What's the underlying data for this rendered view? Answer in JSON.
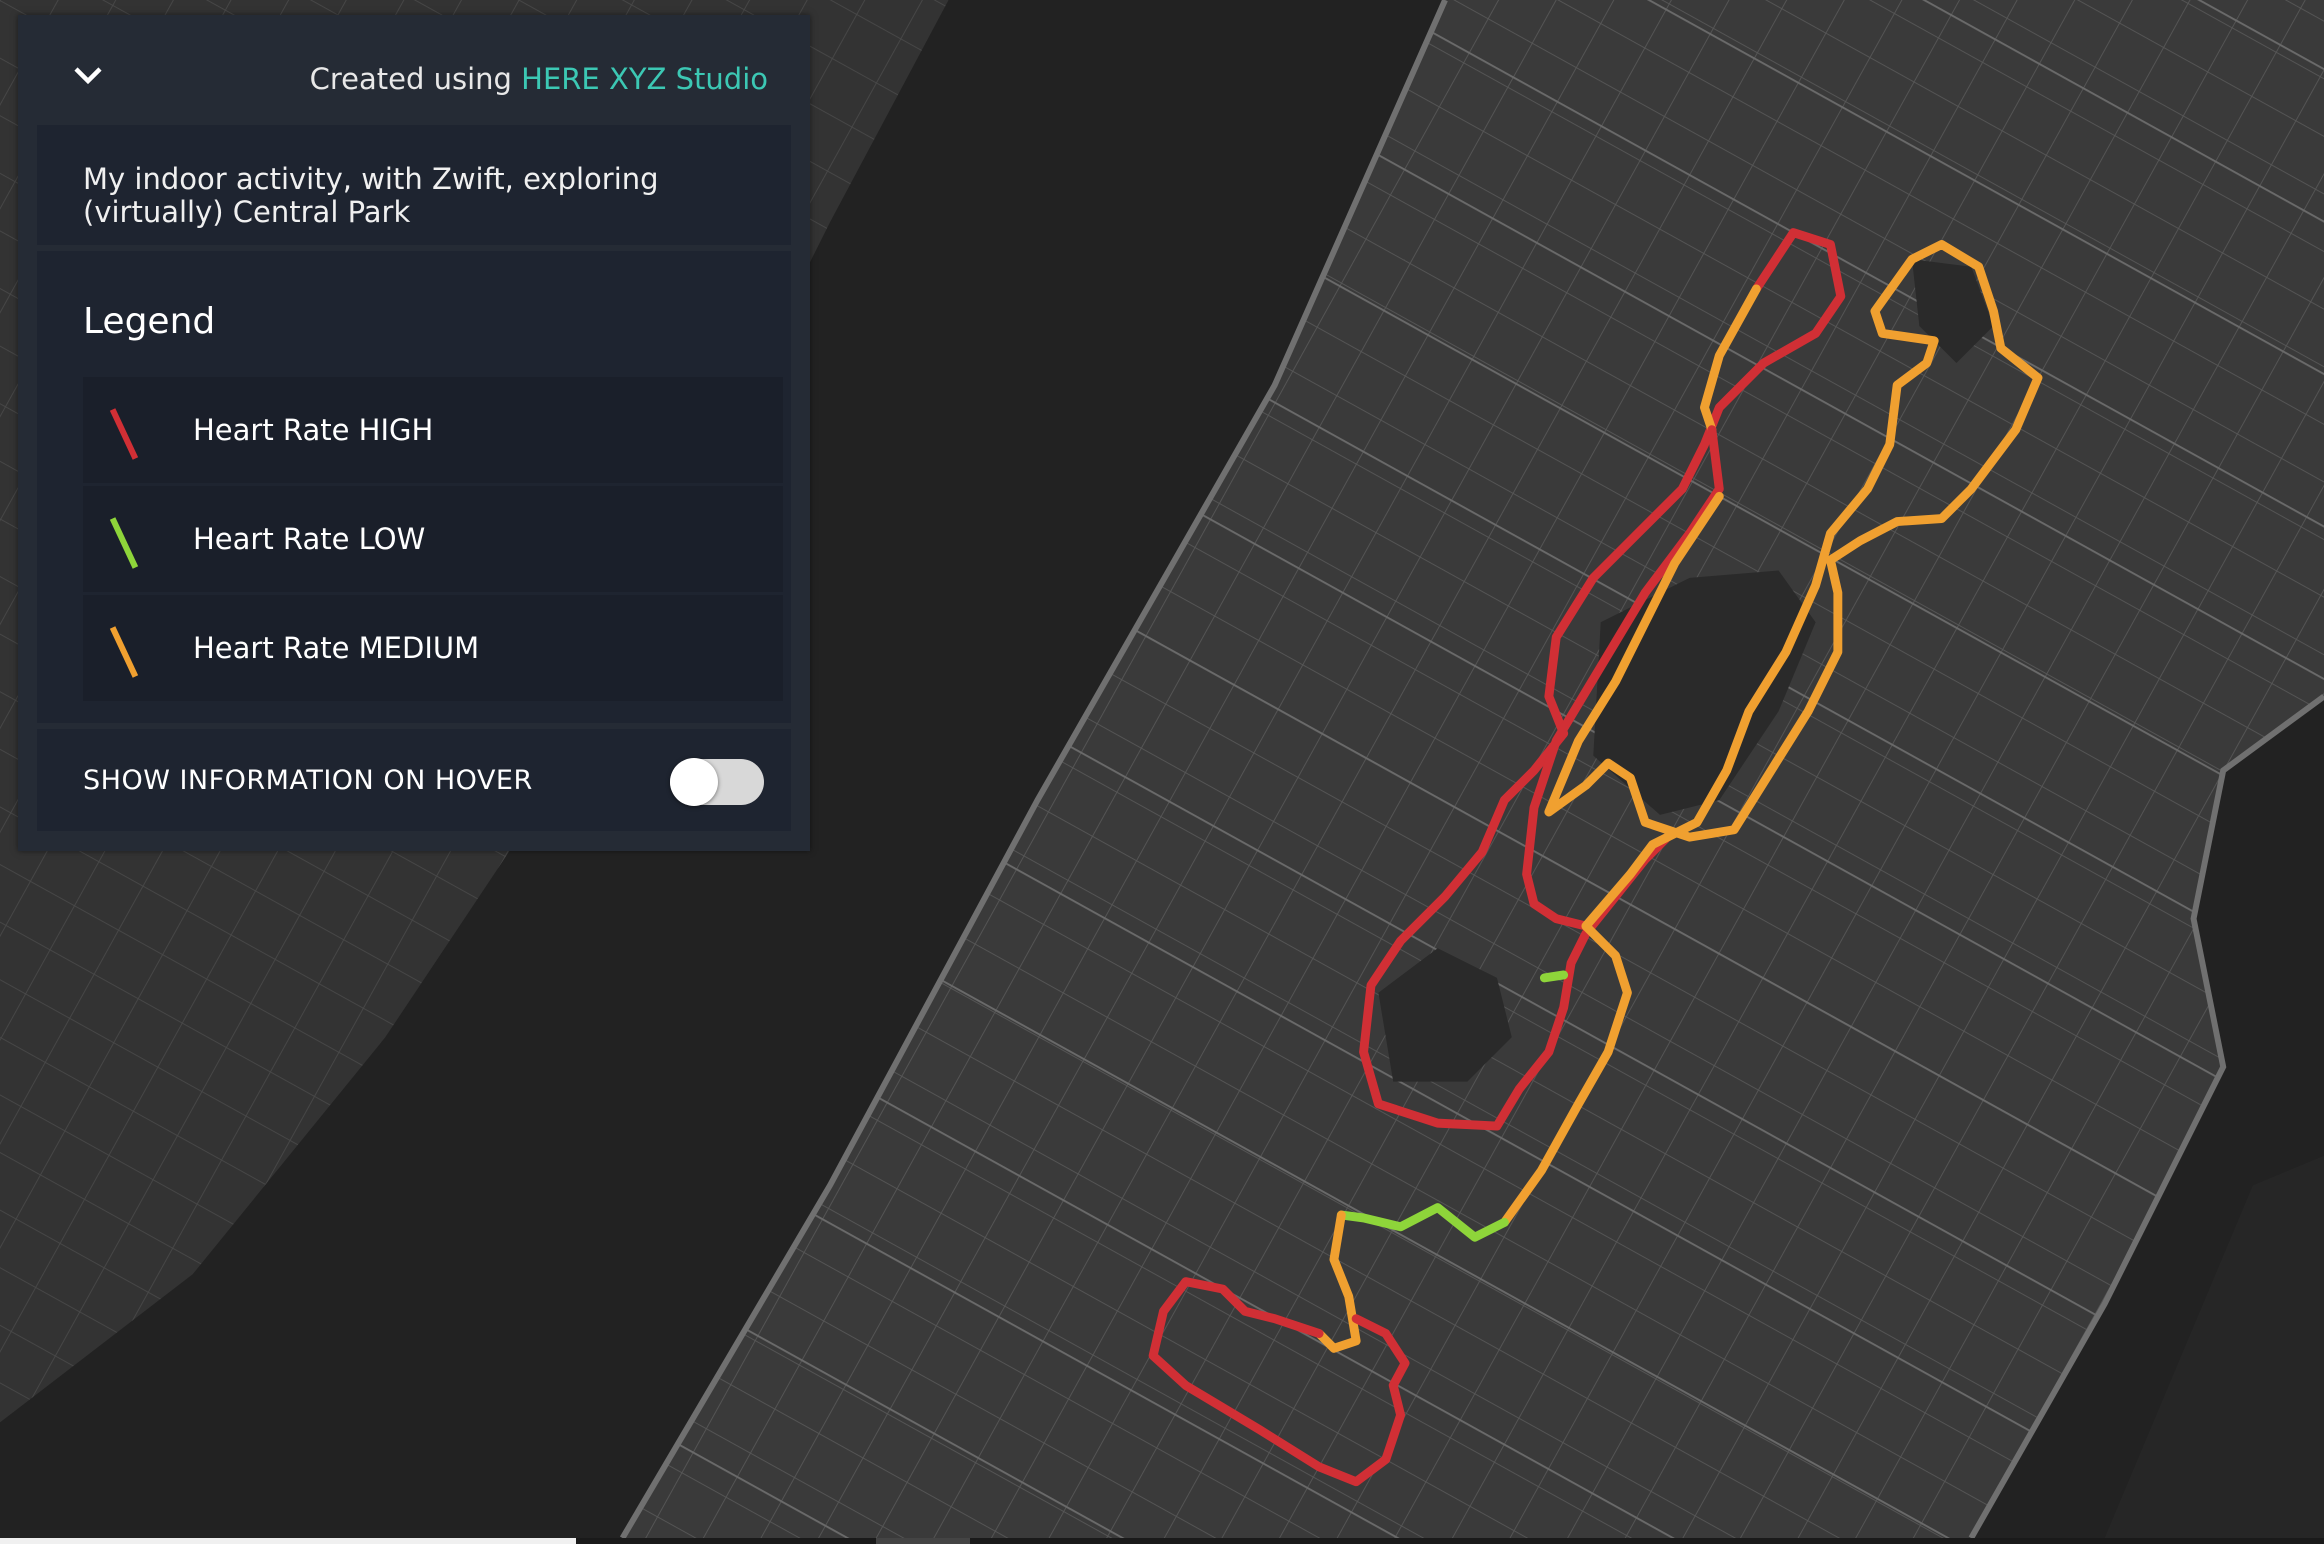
{
  "header": {
    "credit_prefix": "Created using",
    "credit_link": "HERE XYZ Studio",
    "collapse_icon": "chevron-down-icon"
  },
  "description": "My indoor activity, with Zwift, exploring (virtually) Central Park",
  "legend": {
    "title": "Legend",
    "items": [
      {
        "label": "Heart Rate HIGH",
        "color": "#d12f35"
      },
      {
        "label": "Heart Rate LOW",
        "color": "#8ed53a"
      },
      {
        "label": "Heart Rate MEDIUM",
        "color": "#f0a030"
      }
    ]
  },
  "hover_toggle": {
    "label": "SHOW INFORMATION ON HOVER",
    "on": false
  },
  "colors": {
    "accent": "#3cc8b4",
    "water": "#222222",
    "land": "#3a3a3a",
    "street": "#5a5a5a"
  }
}
